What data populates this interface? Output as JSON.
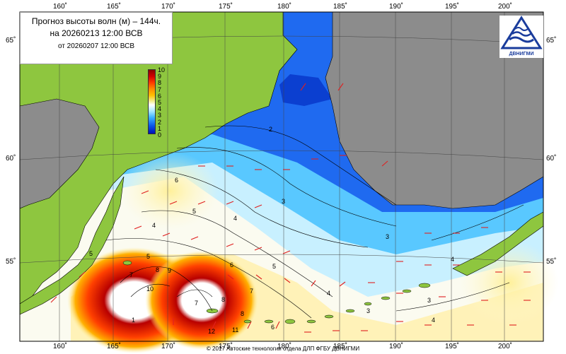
{
  "title": {
    "line1": "Прогноз высоты волн (м) – 144ч.",
    "line2": "на 20260213 12:00 ВСВ",
    "line3": "от 20260207 12:00 ВСВ"
  },
  "logo": {
    "text": "ДВНИГМИ"
  },
  "axes": {
    "longitude_labels": [
      "160˚",
      "165˚",
      "170˚",
      "175˚",
      "180˚",
      "185˚",
      "190˚",
      "195˚",
      "200˚"
    ],
    "latitude_labels": [
      "65˚",
      "60˚",
      "55˚"
    ]
  },
  "legend": {
    "labels": [
      "10",
      "9",
      "8",
      "7",
      "6",
      "5",
      "4",
      "3",
      "2",
      "1",
      "0"
    ]
  },
  "contour_labels": [
    "2",
    "3",
    "3",
    "3",
    "3",
    "4",
    "4",
    "4",
    "4",
    "4",
    "5",
    "5",
    "5",
    "5",
    "6",
    "6",
    "6",
    "7",
    "7",
    "7",
    "8",
    "8",
    "8",
    "9",
    "10",
    "11",
    "12",
    "1"
  ],
  "copyright": "© 2017 Автоские технологии отдела ДЛП ФГБУ ДВНИГМИ",
  "colors": {
    "land": "#8ec63f",
    "land_gray": "#8c8c8c",
    "sea_low": "#1e64f0",
    "sea_mid": "#ffffff",
    "sea_high": "#d10000",
    "arrow": "#e02020"
  }
}
